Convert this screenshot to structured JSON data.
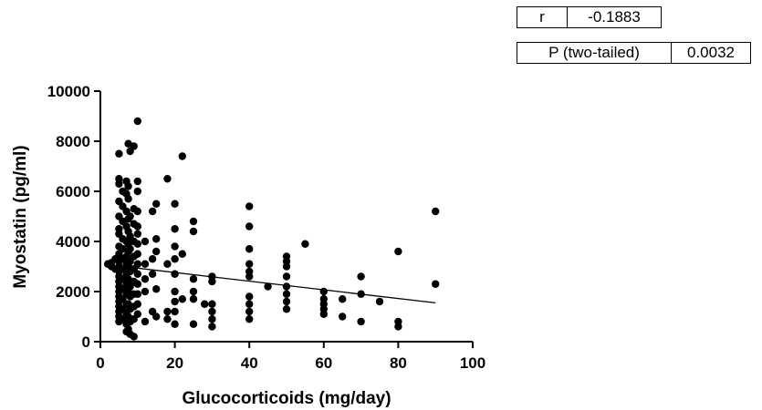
{
  "stats": {
    "r_label": "r",
    "r_value": "-0.1883",
    "p_label": "P (two-tailed)",
    "p_value": "0.0032"
  },
  "chart_data": {
    "type": "scatter",
    "xlabel": "Glucocorticoids (mg/day)",
    "ylabel": "Myostatin (pg/ml)",
    "xlim": [
      0,
      100
    ],
    "ylim": [
      0,
      10000
    ],
    "xticks": [
      0,
      20,
      40,
      60,
      80,
      100
    ],
    "yticks": [
      0,
      2000,
      4000,
      6000,
      8000,
      10000
    ],
    "grid": false,
    "regression_line": {
      "x": [
        5,
        90
      ],
      "y": [
        3020,
        1550
      ]
    },
    "points": [
      [
        2,
        3100
      ],
      [
        3,
        3000
      ],
      [
        3,
        3150
      ],
      [
        4,
        2900
      ],
      [
        4,
        3300
      ],
      [
        5,
        7500
      ],
      [
        5,
        6500
      ],
      [
        5,
        6300
      ],
      [
        5,
        5600
      ],
      [
        5,
        5000
      ],
      [
        5,
        4500
      ],
      [
        5,
        4300
      ],
      [
        5,
        3800
      ],
      [
        5,
        3500
      ],
      [
        5,
        3200
      ],
      [
        5,
        3000
      ],
      [
        5,
        2800
      ],
      [
        5,
        2600
      ],
      [
        5,
        2400
      ],
      [
        5,
        2200
      ],
      [
        5,
        2000
      ],
      [
        5,
        1800
      ],
      [
        5,
        1600
      ],
      [
        5,
        1400
      ],
      [
        5,
        1200
      ],
      [
        5,
        1000
      ],
      [
        5,
        800
      ],
      [
        6,
        6000
      ],
      [
        6,
        5400
      ],
      [
        6,
        4800
      ],
      [
        6,
        4100
      ],
      [
        6,
        3700
      ],
      [
        6,
        3300
      ],
      [
        6,
        2900
      ],
      [
        6,
        2500
      ],
      [
        6,
        2100
      ],
      [
        6,
        1700
      ],
      [
        6,
        1300
      ],
      [
        6,
        900
      ],
      [
        7,
        6400
      ],
      [
        7,
        5900
      ],
      [
        7,
        5200
      ],
      [
        7,
        4600
      ],
      [
        7,
        4000
      ],
      [
        7,
        3400
      ],
      [
        7,
        3100
      ],
      [
        7,
        2700
      ],
      [
        7,
        2300
      ],
      [
        7,
        1900
      ],
      [
        7,
        1500
      ],
      [
        7,
        1100
      ],
      [
        7,
        700
      ],
      [
        7,
        400
      ],
      [
        7.5,
        7900
      ],
      [
        7.5,
        6200
      ],
      [
        7.5,
        5700
      ],
      [
        7.5,
        4900
      ],
      [
        7.5,
        4400
      ],
      [
        7.5,
        3900
      ],
      [
        7.5,
        3600
      ],
      [
        7.5,
        3000
      ],
      [
        7.5,
        2500
      ],
      [
        7.5,
        2000
      ],
      [
        7.5,
        1500
      ],
      [
        7.5,
        1000
      ],
      [
        7.5,
        500
      ],
      [
        8,
        7600
      ],
      [
        8,
        5000
      ],
      [
        8,
        4200
      ],
      [
        8,
        3700
      ],
      [
        8,
        3200
      ],
      [
        8,
        2800
      ],
      [
        8,
        2200
      ],
      [
        8,
        1800
      ],
      [
        8,
        1300
      ],
      [
        8,
        800
      ],
      [
        8,
        300
      ],
      [
        9,
        7800
      ],
      [
        9,
        5300
      ],
      [
        9,
        4700
      ],
      [
        9,
        4000
      ],
      [
        9,
        3400
      ],
      [
        9,
        2900
      ],
      [
        9,
        2400
      ],
      [
        9,
        1900
      ],
      [
        9,
        1400
      ],
      [
        9,
        900
      ],
      [
        9,
        200
      ],
      [
        10,
        8800
      ],
      [
        10,
        6400
      ],
      [
        10,
        6000
      ],
      [
        10,
        5200
      ],
      [
        10,
        4600
      ],
      [
        10,
        4300
      ],
      [
        10,
        3900
      ],
      [
        10,
        3500
      ],
      [
        10,
        3100
      ],
      [
        10,
        2700
      ],
      [
        10,
        2300
      ],
      [
        10,
        1900
      ],
      [
        10,
        1500
      ],
      [
        10,
        1100
      ],
      [
        12,
        4000
      ],
      [
        12,
        3100
      ],
      [
        12,
        2500
      ],
      [
        12,
        2000
      ],
      [
        12,
        800
      ],
      [
        14,
        5200
      ],
      [
        14,
        3300
      ],
      [
        14,
        2700
      ],
      [
        14,
        1200
      ],
      [
        15,
        5500
      ],
      [
        15,
        4100
      ],
      [
        15,
        3600
      ],
      [
        15,
        2100
      ],
      [
        15,
        1000
      ],
      [
        18,
        6500
      ],
      [
        18,
        3100
      ],
      [
        18,
        1200
      ],
      [
        18,
        900
      ],
      [
        20,
        5500
      ],
      [
        20,
        4500
      ],
      [
        20,
        3800
      ],
      [
        20,
        3300
      ],
      [
        20,
        2700
      ],
      [
        20,
        2000
      ],
      [
        20,
        1600
      ],
      [
        20,
        1200
      ],
      [
        20,
        700
      ],
      [
        22,
        7400
      ],
      [
        22,
        3500
      ],
      [
        22,
        1700
      ],
      [
        25,
        4800
      ],
      [
        25,
        4400
      ],
      [
        25,
        2500
      ],
      [
        25,
        2000
      ],
      [
        25,
        1700
      ],
      [
        25,
        700
      ],
      [
        28,
        1500
      ],
      [
        30,
        2600
      ],
      [
        30,
        2400
      ],
      [
        30,
        1500
      ],
      [
        30,
        1200
      ],
      [
        30,
        900
      ],
      [
        30,
        600
      ],
      [
        40,
        5400
      ],
      [
        40,
        4600
      ],
      [
        40,
        3700
      ],
      [
        40,
        3100
      ],
      [
        40,
        2800
      ],
      [
        40,
        2600
      ],
      [
        40,
        1800
      ],
      [
        40,
        1500
      ],
      [
        40,
        1200
      ],
      [
        40,
        900
      ],
      [
        45,
        2200
      ],
      [
        50,
        3400
      ],
      [
        50,
        3200
      ],
      [
        50,
        3000
      ],
      [
        50,
        2600
      ],
      [
        50,
        2200
      ],
      [
        50,
        1900
      ],
      [
        50,
        1600
      ],
      [
        50,
        1300
      ],
      [
        55,
        3900
      ],
      [
        60,
        2000
      ],
      [
        60,
        1700
      ],
      [
        60,
        1500
      ],
      [
        60,
        1300
      ],
      [
        60,
        1100
      ],
      [
        65,
        1700
      ],
      [
        65,
        1000
      ],
      [
        70,
        2600
      ],
      [
        70,
        1900
      ],
      [
        70,
        800
      ],
      [
        75,
        1600
      ],
      [
        80,
        3600
      ],
      [
        80,
        800
      ],
      [
        80,
        600
      ],
      [
        90,
        5200
      ],
      [
        90,
        2300
      ]
    ]
  }
}
